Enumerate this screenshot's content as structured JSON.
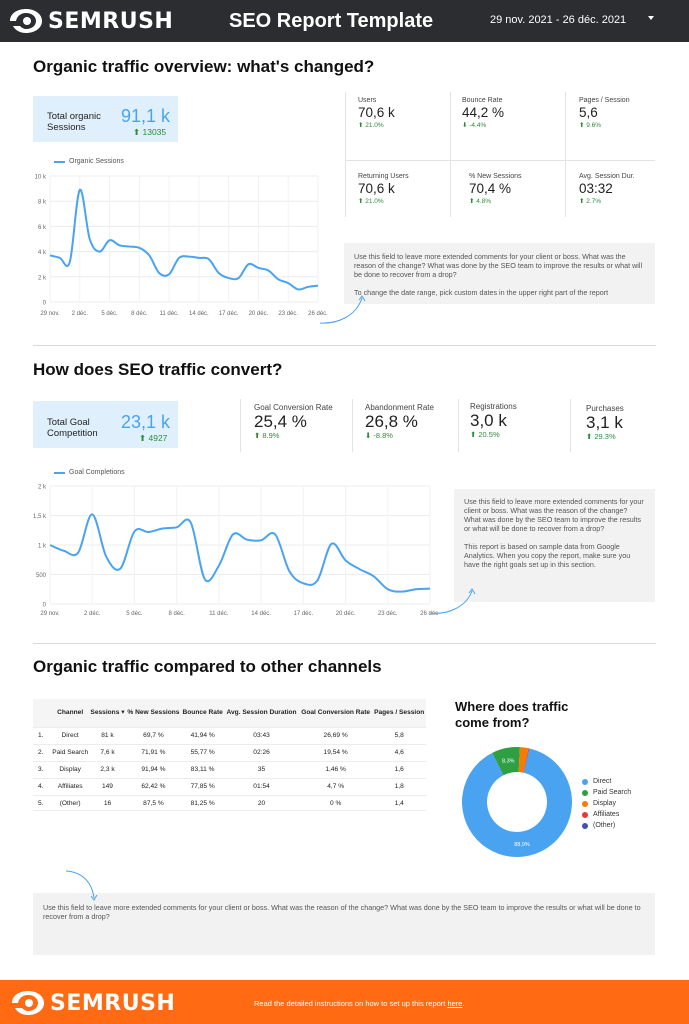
{
  "header": {
    "logo_text": "SEMRUSH",
    "title": "SEO Report Template",
    "date_range": "29 nov. 2021 - 26 déc. 2021"
  },
  "section1": {
    "title": "Organic traffic overview: what's changed?",
    "total": {
      "label_line1": "Total organic",
      "label_line2": "Sessions",
      "value": "91,1 k",
      "delta": "13035"
    },
    "metrics": [
      {
        "label": "Users",
        "value": "70,6 k",
        "delta": "21.0%"
      },
      {
        "label": "Bounce Rate",
        "value": "44,2 %",
        "delta": "-4.4%"
      },
      {
        "label": "Pages / Session",
        "value": "5,6",
        "delta": "9.6%"
      },
      {
        "label": "Returning Users",
        "value": "70,6 k",
        "delta": "21.0%"
      },
      {
        "label": "% New Sessions",
        "value": "70,4 %",
        "delta": "4.8%"
      },
      {
        "label": "Avg. Session Dur.",
        "value": "03:32",
        "delta": "2.7%"
      }
    ],
    "comment": "Use this field to leave more extended comments for your client or boss. What was the reason of the change? What was done by the SEO team to improve the results or what will be done to recover from a drop?",
    "comment_note": "To change the date range, pick custom dates in the upper right part of the report"
  },
  "section2": {
    "title": "How does SEO traffic convert?",
    "total": {
      "label_line1": "Total Goal",
      "label_line2": "Competition",
      "value": "23,1 k",
      "delta": "4927"
    },
    "metrics": [
      {
        "label": "Goal Conversion Rate",
        "value": "25,4 %",
        "delta": "8.9%"
      },
      {
        "label": "Abandonment Rate",
        "value": "26,8 %",
        "delta": "-8.8%"
      },
      {
        "label": "Registrations",
        "value": "3,0 k",
        "delta": "20.5%"
      },
      {
        "label": "Purchases",
        "value": "3,1 k",
        "delta": "29.3%"
      }
    ],
    "comment": "Use this field to leave more extended comments for your client or boss. What was the reason of the change? What was done by the SEO team to improve the results or what will be done to recover from a drop?",
    "comment_note": "This report is based on sample data from Google Analytics. When you copy the report, make sure you have the right goals set up in this section."
  },
  "section3": {
    "title": "Organic traffic compared to other channels",
    "table": {
      "headers": [
        "Channel",
        "Sessions ▾",
        "% New Sessions",
        "Bounce Rate",
        "Avg. Session Duration",
        "Goal Conversion Rate",
        "Pages / Session"
      ],
      "rows": [
        [
          "1.",
          "Direct",
          "81 k",
          "69,7 %",
          "41,94 %",
          "03:43",
          "26,69 %",
          "5,8"
        ],
        [
          "2.",
          "Paid Search",
          "7,6 k",
          "71,91 %",
          "55,77 %",
          "02:26",
          "19,54 %",
          "4,6"
        ],
        [
          "3.",
          "Display",
          "2,3 k",
          "91,94 %",
          "83,11 %",
          "35",
          "1,46 %",
          "1,6"
        ],
        [
          "4.",
          "Affiliates",
          "149",
          "62,42 %",
          "77,85 %",
          "01:54",
          "4,7 %",
          "1,8"
        ],
        [
          "5.",
          "(Other)",
          "16",
          "87,5 %",
          "81,25 %",
          "20",
          "0 %",
          "1,4"
        ]
      ]
    },
    "pie_title_line1": "Where does traffic",
    "pie_title_line2": "come from?",
    "comment": "Use this field to leave more extended comments for your client or boss. What was the reason of the change? What was done by the SEO team to improve the results or what will be done to recover from a drop?"
  },
  "footer": {
    "logo_text": "SEMRUSH",
    "text": "Read the detailed instructions on how to set up this report",
    "link": "here",
    "suffix": "."
  },
  "colors": {
    "accent_blue": "#4aa3f0",
    "header_bg": "#2b2d30",
    "footer_bg": "#ff6a13",
    "positive": "#2e8b3a"
  },
  "chart_data": [
    {
      "type": "line",
      "legend": "Organic Sessions",
      "x": [
        "29 nov.",
        "30 nov.",
        "1 déc.",
        "2 déc.",
        "3 déc.",
        "4 déc.",
        "5 déc.",
        "6 déc.",
        "7 déc.",
        "8 déc.",
        "9 déc.",
        "10 déc.",
        "11 déc.",
        "12 déc.",
        "13 déc.",
        "14 déc.",
        "15 déc.",
        "16 déc.",
        "17 déc.",
        "18 déc.",
        "19 déc.",
        "20 déc.",
        "21 déc.",
        "22 déc.",
        "23 déc.",
        "24 déc.",
        "25 déc.",
        "26 déc."
      ],
      "tick_labels": [
        "29 nov.",
        "2 déc.",
        "5 déc.",
        "8 déc.",
        "11 déc.",
        "14 déc.",
        "17 déc.",
        "20 déc.",
        "23 déc.",
        "26 déc."
      ],
      "values": [
        3700,
        3500,
        3200,
        8900,
        5000,
        4000,
        4900,
        4500,
        4400,
        4300,
        3700,
        2300,
        2200,
        3500,
        3600,
        3500,
        3400,
        2300,
        1900,
        1900,
        3000,
        2700,
        2500,
        1800,
        1500,
        1000,
        1200,
        1300
      ],
      "ylim": [
        0,
        10000
      ],
      "yticks": [
        "0",
        "2 k",
        "4 k",
        "6 k",
        "8 k",
        "10 k"
      ]
    },
    {
      "type": "line",
      "legend": "Goal Completions",
      "x": [
        "29 nov.",
        "30 nov.",
        "1 déc.",
        "2 déc.",
        "3 déc.",
        "4 déc.",
        "5 déc.",
        "6 déc.",
        "7 déc.",
        "8 déc.",
        "9 déc.",
        "10 déc.",
        "11 déc.",
        "12 déc.",
        "13 déc.",
        "14 déc.",
        "15 déc.",
        "16 déc.",
        "17 déc.",
        "18 déc.",
        "19 déc.",
        "20 déc.",
        "21 déc.",
        "22 déc.",
        "23 déc.",
        "24 déc.",
        "25 déc.",
        "26 déc."
      ],
      "tick_labels": [
        "29 nov.",
        "2 déc.",
        "5 déc.",
        "8 déc.",
        "11 déc.",
        "14 déc.",
        "17 déc.",
        "20 déc.",
        "23 déc.",
        "26 déc."
      ],
      "values": [
        1000,
        900,
        870,
        1520,
        800,
        600,
        1230,
        1220,
        1280,
        1300,
        1380,
        420,
        650,
        1180,
        1090,
        1080,
        1180,
        560,
        350,
        400,
        1020,
        740,
        590,
        470,
        250,
        210,
        250,
        260
      ],
      "ylim": [
        0,
        2000
      ],
      "yticks": [
        "0",
        "500",
        "1 k",
        "1,5 k",
        "2 k"
      ]
    },
    {
      "type": "pie",
      "donut": true,
      "categories": [
        "Direct",
        "Paid Search",
        "Display",
        "Affiliates",
        "(Other)"
      ],
      "values": [
        88.9,
        8.3,
        2.5,
        0.2,
        0.1
      ],
      "data_labels": [
        "88,9%",
        "8,3%",
        "",
        "",
        ""
      ],
      "colors": [
        "#4aa3f0",
        "#2ea043",
        "#f57c00",
        "#e53935",
        "#3f51b5"
      ]
    }
  ]
}
